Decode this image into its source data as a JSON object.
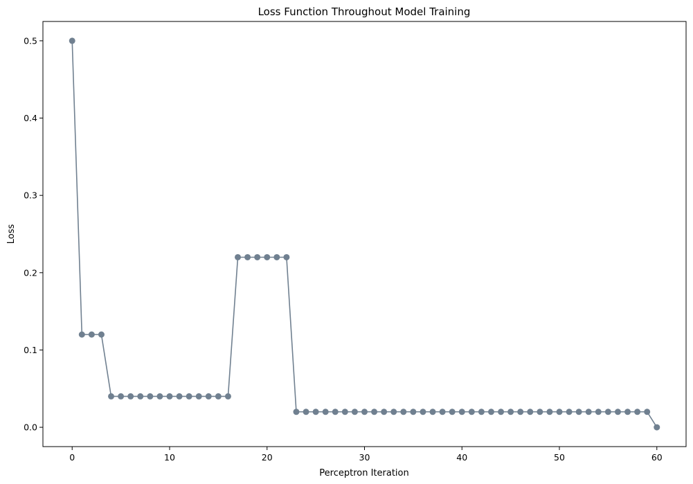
{
  "chart_data": {
    "type": "line",
    "title": "Loss Function Throughout Model Training",
    "xlabel": "Perceptron Iteration",
    "ylabel": "Loss",
    "xlim": [
      -3,
      63
    ],
    "ylim": [
      -0.025,
      0.525
    ],
    "xticks": [
      0,
      10,
      20,
      30,
      40,
      50,
      60
    ],
    "yticks": [
      0.0,
      0.1,
      0.2,
      0.3,
      0.4,
      0.5
    ],
    "xtick_labels": [
      "0",
      "10",
      "20",
      "30",
      "40",
      "50",
      "60"
    ],
    "ytick_labels": [
      "0.0",
      "0.1",
      "0.2",
      "0.3",
      "0.4",
      "0.5"
    ],
    "grid": false,
    "marker": "circle",
    "color": "#708090",
    "series": [
      {
        "x": [
          0,
          1,
          2,
          3,
          4,
          5,
          6,
          7,
          8,
          9,
          10,
          11,
          12,
          13,
          14,
          15,
          16,
          17,
          18,
          19,
          20,
          21,
          22,
          23,
          24,
          25,
          26,
          27,
          28,
          29,
          30,
          31,
          32,
          33,
          34,
          35,
          36,
          37,
          38,
          39,
          40,
          41,
          42,
          43,
          44,
          45,
          46,
          47,
          48,
          49,
          50,
          51,
          52,
          53,
          54,
          55,
          56,
          57,
          58,
          59,
          60
        ],
        "values": [
          0.5,
          0.12,
          0.12,
          0.12,
          0.04,
          0.04,
          0.04,
          0.04,
          0.04,
          0.04,
          0.04,
          0.04,
          0.04,
          0.04,
          0.04,
          0.04,
          0.04,
          0.22,
          0.22,
          0.22,
          0.22,
          0.22,
          0.22,
          0.02,
          0.02,
          0.02,
          0.02,
          0.02,
          0.02,
          0.02,
          0.02,
          0.02,
          0.02,
          0.02,
          0.02,
          0.02,
          0.02,
          0.02,
          0.02,
          0.02,
          0.02,
          0.02,
          0.02,
          0.02,
          0.02,
          0.02,
          0.02,
          0.02,
          0.02,
          0.02,
          0.02,
          0.02,
          0.02,
          0.02,
          0.02,
          0.02,
          0.02,
          0.02,
          0.02,
          0.02,
          0.0
        ]
      }
    ]
  }
}
